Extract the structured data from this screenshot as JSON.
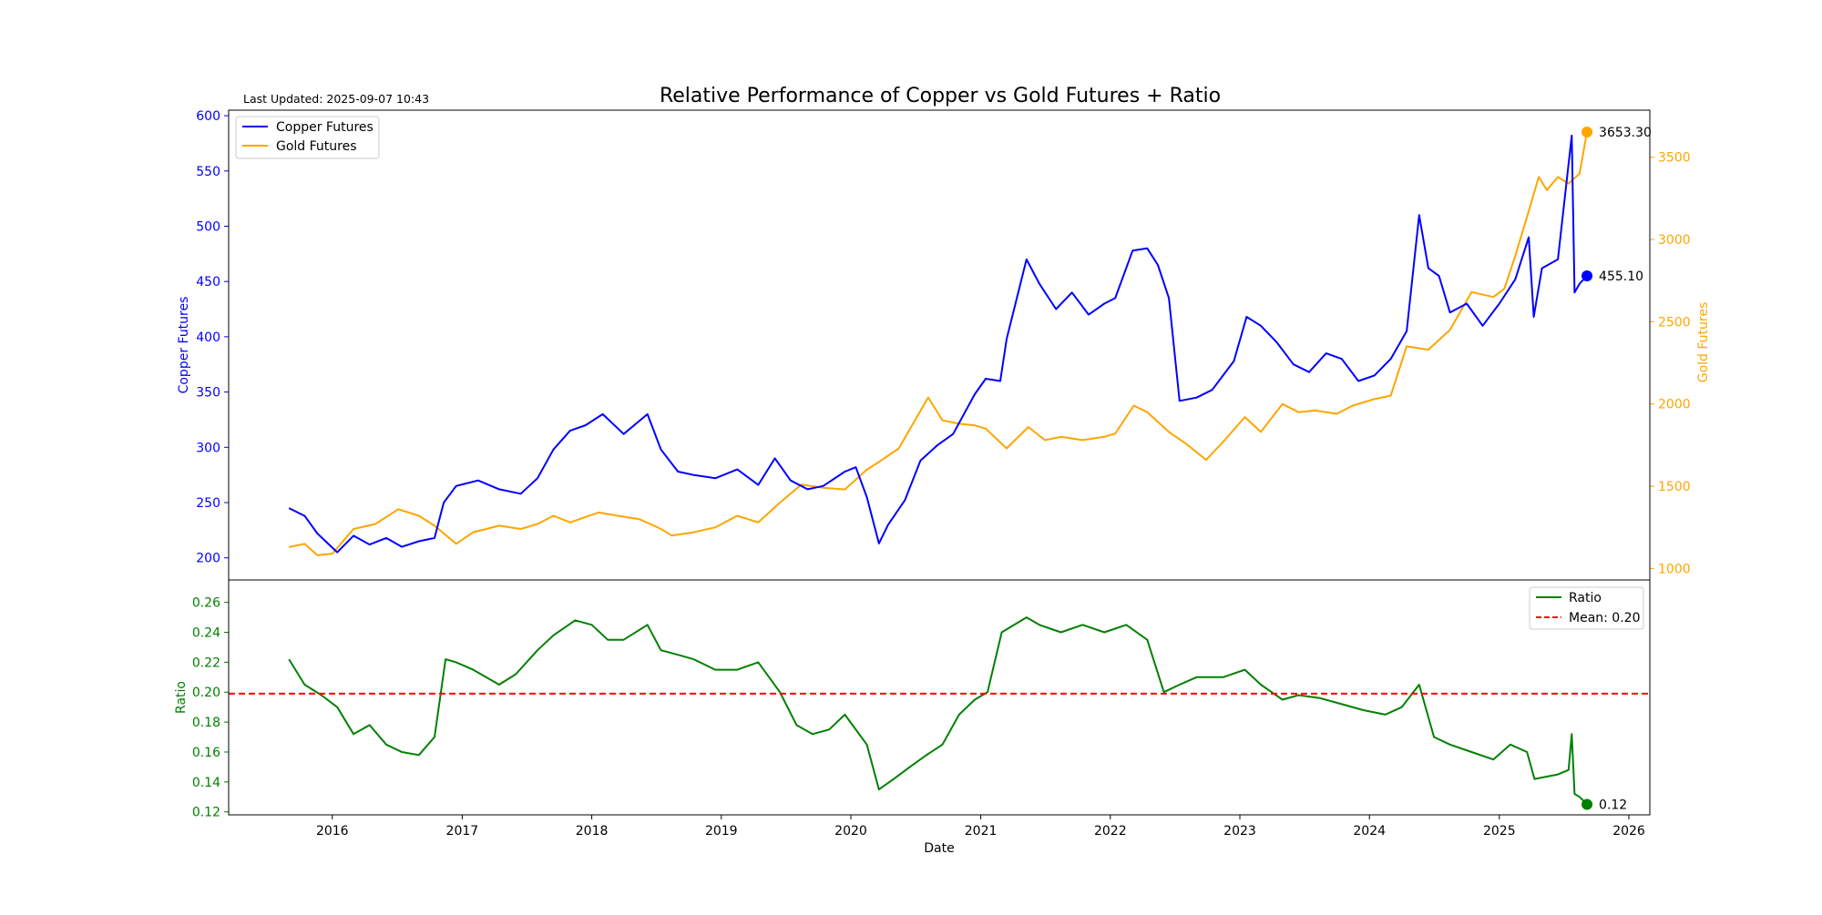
{
  "header": {
    "title": "Relative Performance of Copper vs Gold Futures + Ratio",
    "last_updated": "Last Updated: 2025-09-07 10:43"
  },
  "colors": {
    "copper": "#0000ff",
    "gold": "#ffa500",
    "ratio": "#008000",
    "mean": "#ff0000",
    "axis": "#000000"
  },
  "chart_data": [
    {
      "type": "line",
      "panel": "top",
      "title": "Relative Performance of Copper vs Gold Futures + Ratio",
      "ylabel_left": "Copper Futures",
      "ylabel_right": "Gold Futures",
      "xlim": [
        "2015-03-15",
        "2026-03-01"
      ],
      "ylim_left": [
        180,
        605
      ],
      "ylim_right": [
        930,
        3786
      ],
      "yticks_left": [
        200,
        250,
        300,
        350,
        400,
        450,
        500,
        550,
        600
      ],
      "yticks_right": [
        1000,
        1500,
        2000,
        2500,
        3000,
        3500
      ],
      "grid": false,
      "legend": {
        "placement": "upper-left",
        "entries": [
          "Copper Futures",
          "Gold Futures"
        ]
      },
      "series": [
        {
          "name": "Copper Futures",
          "axis": "left",
          "x": [
            "2015-09-01",
            "2015-10-15",
            "2015-11-20",
            "2016-01-15",
            "2016-03-01",
            "2016-04-15",
            "2016-06-01",
            "2016-07-15",
            "2016-09-01",
            "2016-10-15",
            "2016-11-10",
            "2016-12-15",
            "2017-02-15",
            "2017-04-15",
            "2017-06-15",
            "2017-08-01",
            "2017-09-15",
            "2017-11-01",
            "2017-12-15",
            "2018-02-01",
            "2018-04-01",
            "2018-06-07",
            "2018-07-15",
            "2018-09-01",
            "2018-10-15",
            "2018-12-15",
            "2019-02-15",
            "2019-04-15",
            "2019-06-01",
            "2019-07-15",
            "2019-09-01",
            "2019-10-15",
            "2019-12-15",
            "2020-01-15",
            "2020-02-15",
            "2020-03-20",
            "2020-04-15",
            "2020-06-01",
            "2020-07-15",
            "2020-09-01",
            "2020-10-15",
            "2020-12-15",
            "2021-01-15",
            "2021-02-25",
            "2021-03-15",
            "2021-05-10",
            "2021-06-15",
            "2021-08-01",
            "2021-09-15",
            "2021-11-01",
            "2021-12-15",
            "2022-01-15",
            "2022-03-05",
            "2022-04-15",
            "2022-05-15",
            "2022-06-15",
            "2022-07-15",
            "2022-09-01",
            "2022-10-15",
            "2022-12-15",
            "2023-01-20",
            "2023-03-01",
            "2023-04-15",
            "2023-06-01",
            "2023-07-15",
            "2023-09-01",
            "2023-10-15",
            "2023-12-01",
            "2024-01-15",
            "2024-03-01",
            "2024-04-15",
            "2024-05-20",
            "2024-06-15",
            "2024-07-15",
            "2024-08-15",
            "2024-10-01",
            "2024-11-15",
            "2025-01-01",
            "2025-02-15",
            "2025-03-25",
            "2025-04-08",
            "2025-05-01",
            "2025-06-15",
            "2025-07-24",
            "2025-08-01",
            "2025-08-15",
            "2025-09-05"
          ],
          "values": [
            245,
            238,
            222,
            205,
            220,
            212,
            218,
            210,
            215,
            218,
            250,
            265,
            270,
            262,
            258,
            272,
            298,
            315,
            320,
            330,
            312,
            330,
            298,
            278,
            275,
            272,
            280,
            266,
            290,
            270,
            262,
            265,
            278,
            282,
            255,
            213,
            230,
            252,
            288,
            302,
            312,
            348,
            362,
            360,
            398,
            470,
            448,
            425,
            440,
            420,
            430,
            435,
            478,
            480,
            465,
            435,
            342,
            345,
            352,
            378,
            418,
            410,
            395,
            375,
            368,
            385,
            380,
            360,
            365,
            380,
            405,
            510,
            462,
            455,
            422,
            430,
            410,
            430,
            452,
            490,
            418,
            462,
            470,
            582,
            440,
            448,
            455.1
          ]
        },
        {
          "name": "Gold Futures",
          "axis": "right",
          "x": [
            "2015-09-01",
            "2015-10-15",
            "2015-11-20",
            "2016-01-01",
            "2016-03-01",
            "2016-05-01",
            "2016-07-05",
            "2016-09-01",
            "2016-10-15",
            "2016-12-15",
            "2017-02-01",
            "2017-04-15",
            "2017-06-15",
            "2017-08-01",
            "2017-09-15",
            "2017-11-01",
            "2018-01-20",
            "2018-03-15",
            "2018-05-15",
            "2018-07-15",
            "2018-08-15",
            "2018-10-15",
            "2018-12-15",
            "2019-02-15",
            "2019-04-15",
            "2019-06-15",
            "2019-08-15",
            "2019-10-15",
            "2019-12-15",
            "2020-02-15",
            "2020-03-15",
            "2020-05-15",
            "2020-08-06",
            "2020-09-15",
            "2020-11-01",
            "2020-12-15",
            "2021-01-15",
            "2021-03-15",
            "2021-05-15",
            "2021-07-01",
            "2021-08-15",
            "2021-10-15",
            "2021-12-15",
            "2022-01-15",
            "2022-03-08",
            "2022-04-15",
            "2022-06-15",
            "2022-08-01",
            "2022-09-28",
            "2022-11-15",
            "2023-01-15",
            "2023-03-01",
            "2023-05-01",
            "2023-06-15",
            "2023-08-01",
            "2023-10-01",
            "2023-11-15",
            "2024-01-15",
            "2024-03-01",
            "2024-04-15",
            "2024-06-15",
            "2024-08-15",
            "2024-10-15",
            "2024-12-15",
            "2025-01-15",
            "2025-02-15",
            "2025-03-15",
            "2025-04-22",
            "2025-05-15",
            "2025-06-15",
            "2025-07-15",
            "2025-08-15",
            "2025-09-05"
          ],
          "values": [
            1130,
            1150,
            1080,
            1090,
            1240,
            1270,
            1360,
            1320,
            1260,
            1150,
            1220,
            1260,
            1240,
            1270,
            1320,
            1280,
            1340,
            1320,
            1300,
            1240,
            1200,
            1220,
            1250,
            1320,
            1280,
            1400,
            1510,
            1490,
            1480,
            1600,
            1640,
            1730,
            2040,
            1900,
            1880,
            1870,
            1850,
            1730,
            1860,
            1780,
            1800,
            1780,
            1800,
            1820,
            1990,
            1950,
            1830,
            1760,
            1660,
            1770,
            1920,
            1830,
            2000,
            1950,
            1960,
            1940,
            1990,
            2030,
            2050,
            2350,
            2330,
            2450,
            2680,
            2650,
            2700,
            2900,
            3100,
            3380,
            3300,
            3380,
            3340,
            3400,
            3653.3
          ]
        }
      ],
      "annotations": [
        {
          "series": "Gold Futures",
          "date": "2025-09-05",
          "value": 3653.3,
          "label": "3653.30"
        },
        {
          "series": "Copper Futures",
          "date": "2025-09-05",
          "value": 455.1,
          "label": "455.10"
        }
      ]
    },
    {
      "type": "line",
      "panel": "bottom",
      "xlabel": "Date",
      "ylabel": "Ratio",
      "xlim": [
        "2015-03-15",
        "2026-03-01"
      ],
      "ylim": [
        0.118,
        0.275
      ],
      "yticks": [
        0.12,
        0.14,
        0.16,
        0.18,
        0.2,
        0.22,
        0.24,
        0.26
      ],
      "xticks": [
        "2016",
        "2017",
        "2018",
        "2019",
        "2020",
        "2021",
        "2022",
        "2023",
        "2024",
        "2025",
        "2026"
      ],
      "grid": false,
      "legend": {
        "placement": "upper-right",
        "entries": [
          "Ratio",
          "Mean: 0.20"
        ]
      },
      "mean": 0.199,
      "series": [
        {
          "name": "Ratio",
          "x": [
            "2015-09-01",
            "2015-10-15",
            "2015-12-01",
            "2016-01-15",
            "2016-03-01",
            "2016-04-15",
            "2016-06-01",
            "2016-07-15",
            "2016-09-01",
            "2016-10-15",
            "2016-11-15",
            "2016-12-15",
            "2017-02-01",
            "2017-04-15",
            "2017-06-01",
            "2017-08-01",
            "2017-09-15",
            "2017-11-15",
            "2018-01-01",
            "2018-02-15",
            "2018-04-01",
            "2018-06-07",
            "2018-07-15",
            "2018-09-01",
            "2018-10-15",
            "2018-12-15",
            "2019-02-15",
            "2019-04-15",
            "2019-06-15",
            "2019-08-01",
            "2019-09-15",
            "2019-11-01",
            "2019-12-15",
            "2020-02-15",
            "2020-03-20",
            "2020-05-01",
            "2020-06-15",
            "2020-08-01",
            "2020-09-15",
            "2020-11-01",
            "2020-12-15",
            "2021-01-20",
            "2021-03-01",
            "2021-05-10",
            "2021-06-15",
            "2021-08-15",
            "2021-10-15",
            "2021-12-15",
            "2022-02-15",
            "2022-04-15",
            "2022-06-01",
            "2022-07-15",
            "2022-09-01",
            "2022-11-15",
            "2023-01-15",
            "2023-03-01",
            "2023-05-01",
            "2023-06-15",
            "2023-08-15",
            "2023-10-15",
            "2023-12-15",
            "2024-02-15",
            "2024-04-01",
            "2024-05-20",
            "2024-07-01",
            "2024-08-15",
            "2024-10-15",
            "2024-12-15",
            "2025-02-01",
            "2025-03-20",
            "2025-04-10",
            "2025-06-15",
            "2025-07-15",
            "2025-07-24",
            "2025-08-01",
            "2025-08-15",
            "2025-09-05"
          ],
          "values": [
            0.222,
            0.205,
            0.198,
            0.19,
            0.172,
            0.178,
            0.165,
            0.16,
            0.158,
            0.17,
            0.222,
            0.22,
            0.215,
            0.205,
            0.212,
            0.228,
            0.238,
            0.248,
            0.245,
            0.235,
            0.235,
            0.245,
            0.228,
            0.225,
            0.222,
            0.215,
            0.215,
            0.22,
            0.2,
            0.178,
            0.172,
            0.175,
            0.185,
            0.165,
            0.135,
            0.142,
            0.15,
            0.158,
            0.165,
            0.185,
            0.195,
            0.2,
            0.24,
            0.25,
            0.245,
            0.24,
            0.245,
            0.24,
            0.245,
            0.235,
            0.2,
            0.205,
            0.21,
            0.21,
            0.215,
            0.205,
            0.195,
            0.198,
            0.196,
            0.192,
            0.188,
            0.185,
            0.19,
            0.205,
            0.17,
            0.165,
            0.16,
            0.155,
            0.165,
            0.16,
            0.142,
            0.145,
            0.148,
            0.172,
            0.132,
            0.13,
            0.125
          ]
        }
      ],
      "annotations": [
        {
          "series": "Ratio",
          "date": "2025-09-05",
          "value": 0.125,
          "label": "0.12"
        }
      ]
    }
  ]
}
